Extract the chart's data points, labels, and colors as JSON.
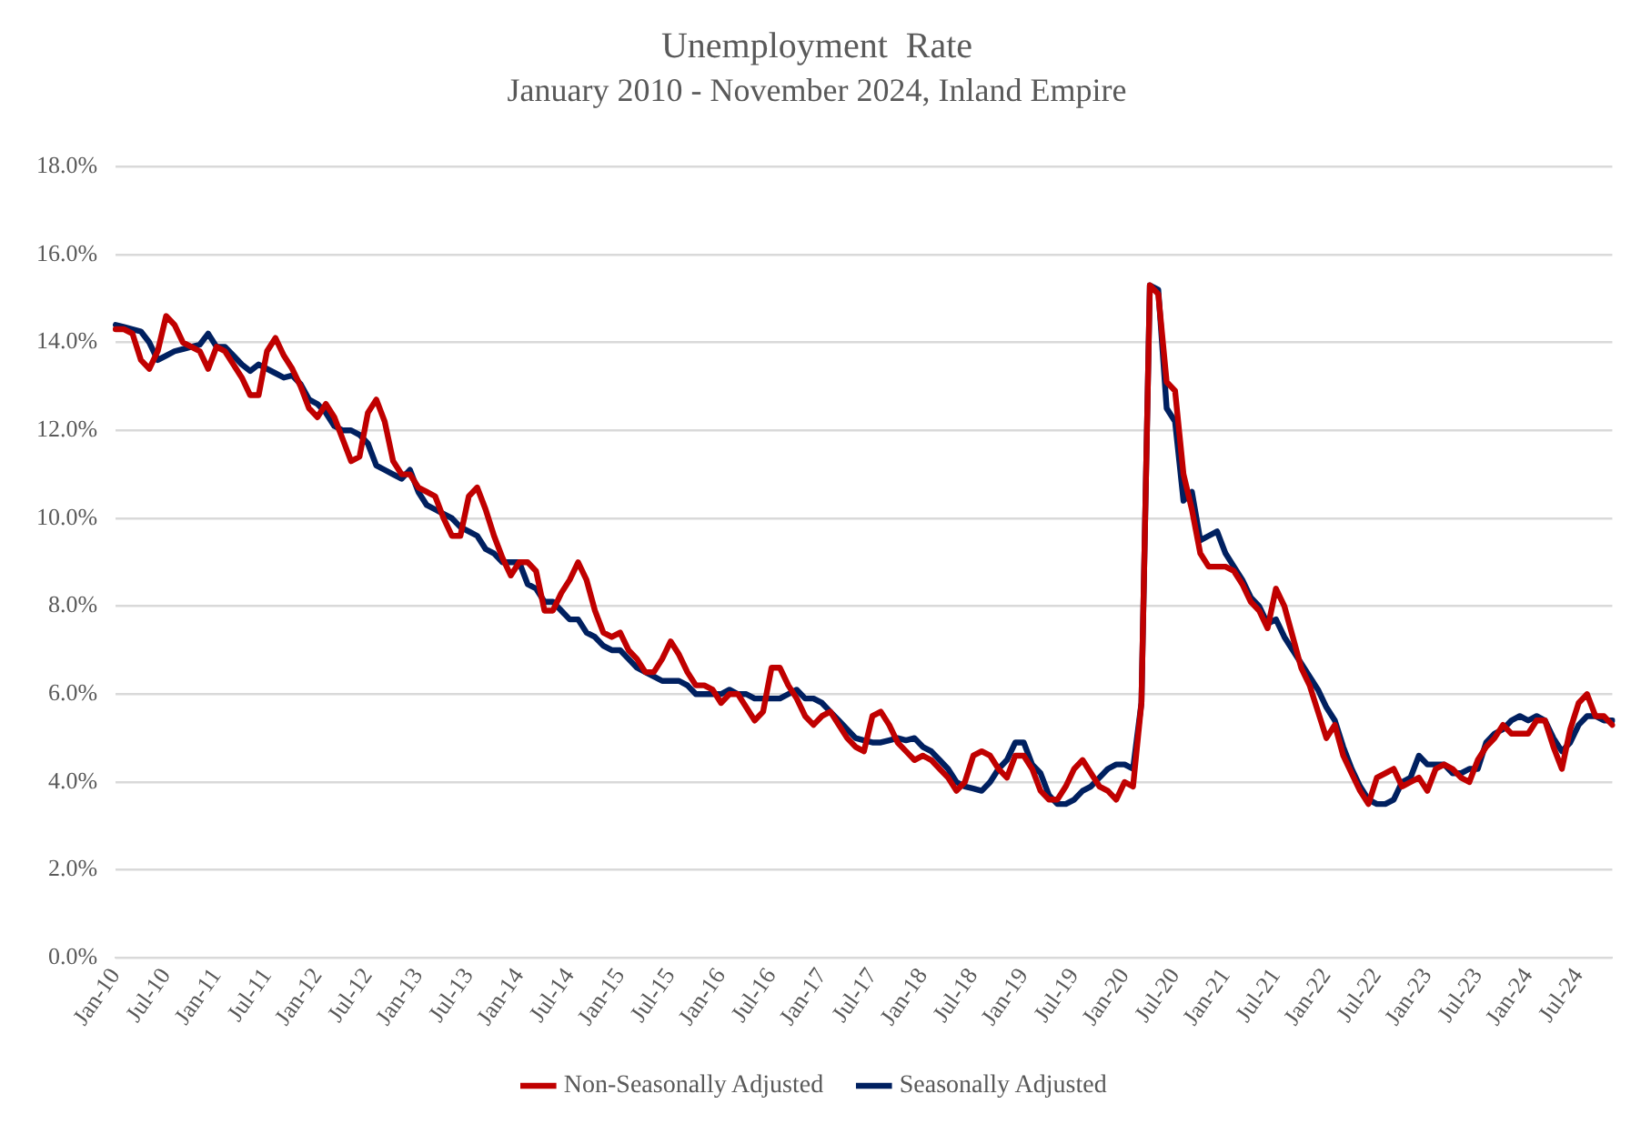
{
  "chart_data": {
    "type": "line",
    "title": "Unemployment  Rate",
    "subtitle": "January 2010 - November 2024, Inland Empire",
    "categories": [
      "Jan-10",
      null,
      null,
      null,
      null,
      null,
      "Jul-10",
      null,
      null,
      null,
      null,
      null,
      "Jan-11",
      null,
      null,
      null,
      null,
      null,
      "Jul-11",
      null,
      null,
      null,
      null,
      null,
      "Jan-12",
      null,
      null,
      null,
      null,
      null,
      "Jul-12",
      null,
      null,
      null,
      null,
      null,
      "Jan-13",
      null,
      null,
      null,
      null,
      null,
      "Jul-13",
      null,
      null,
      null,
      null,
      null,
      "Jan-14",
      null,
      null,
      null,
      null,
      null,
      "Jul-14",
      null,
      null,
      null,
      null,
      null,
      "Jan-15",
      null,
      null,
      null,
      null,
      null,
      "Jul-15",
      null,
      null,
      null,
      null,
      null,
      "Jan-16",
      null,
      null,
      null,
      null,
      null,
      "Jul-16",
      null,
      null,
      null,
      null,
      null,
      "Jan-17",
      null,
      null,
      null,
      null,
      null,
      "Jul-17",
      null,
      null,
      null,
      null,
      null,
      "Jan-18",
      null,
      null,
      null,
      null,
      null,
      "Jul-18",
      null,
      null,
      null,
      null,
      null,
      "Jan-19",
      null,
      null,
      null,
      null,
      null,
      "Jul-19",
      null,
      null,
      null,
      null,
      null,
      "Jan-20",
      null,
      null,
      null,
      null,
      null,
      "Jul-20",
      null,
      null,
      null,
      null,
      null,
      "Jan-21",
      null,
      null,
      null,
      null,
      null,
      "Jul-21",
      null,
      null,
      null,
      null,
      null,
      "Jan-22",
      null,
      null,
      null,
      null,
      null,
      "Jul-22",
      null,
      null,
      null,
      null,
      null,
      "Jan-23",
      null,
      null,
      null,
      null,
      null,
      "Jul-23",
      null,
      null,
      null,
      null,
      null,
      "Jan-24",
      null,
      null,
      null,
      null,
      null,
      "Jul-24",
      null,
      null,
      null,
      null
    ],
    "series": [
      {
        "name": "Non-Seasonally Adjusted",
        "color": "#c00000",
        "values": [
          14.3,
          14.3,
          14.2,
          13.6,
          13.4,
          13.8,
          14.6,
          14.4,
          14.0,
          13.9,
          13.8,
          13.4,
          13.9,
          13.8,
          13.5,
          13.2,
          12.8,
          12.8,
          13.8,
          14.1,
          13.7,
          13.4,
          13.0,
          12.5,
          12.3,
          12.6,
          12.3,
          11.8,
          11.3,
          11.4,
          12.4,
          12.7,
          12.2,
          11.3,
          11.0,
          11.0,
          10.7,
          10.6,
          10.5,
          10.0,
          9.6,
          9.6,
          10.5,
          10.7,
          10.2,
          9.6,
          9.1,
          8.7,
          9.0,
          9.0,
          8.8,
          7.9,
          7.9,
          8.3,
          8.6,
          9.0,
          8.6,
          7.9,
          7.4,
          7.3,
          7.4,
          7.0,
          6.8,
          6.5,
          6.5,
          6.8,
          7.2,
          6.9,
          6.5,
          6.2,
          6.2,
          6.1,
          5.8,
          6.0,
          6.0,
          5.7,
          5.4,
          5.6,
          6.6,
          6.6,
          6.2,
          5.9,
          5.5,
          5.3,
          5.5,
          5.6,
          5.3,
          5.0,
          4.8,
          4.7,
          5.5,
          5.6,
          5.3,
          4.9,
          4.7,
          4.5,
          4.6,
          4.5,
          4.3,
          4.1,
          3.8,
          4.0,
          4.6,
          4.7,
          4.6,
          4.3,
          4.1,
          4.6,
          4.6,
          4.3,
          3.8,
          3.6,
          3.6,
          3.9,
          4.3,
          4.5,
          4.2,
          3.9,
          3.8,
          3.6,
          4.0,
          3.9,
          5.8,
          15.3,
          15.1,
          13.1,
          12.9,
          11.0,
          10.2,
          9.2,
          8.9,
          8.9,
          8.9,
          8.8,
          8.5,
          8.1,
          7.9,
          7.5,
          8.4,
          8.0,
          7.3,
          6.6,
          6.2,
          5.6,
          5.0,
          5.3,
          4.6,
          4.2,
          3.8,
          3.5,
          4.1,
          4.2,
          4.3,
          3.9,
          4.0,
          4.1,
          3.8,
          4.3,
          4.4,
          4.3,
          4.1,
          4.0,
          4.5,
          4.8,
          5.0,
          5.3,
          5.1,
          5.1,
          5.1,
          5.4,
          5.4,
          4.8,
          4.3,
          5.2,
          5.8,
          6.0,
          5.5,
          5.5,
          5.3
        ]
      },
      {
        "name": "Seasonally Adjusted",
        "color": "#002060",
        "values": [
          14.4,
          14.35,
          14.3,
          14.25,
          14.0,
          13.6,
          13.7,
          13.8,
          13.85,
          13.9,
          13.95,
          14.2,
          13.9,
          13.9,
          13.7,
          13.5,
          13.35,
          13.5,
          13.4,
          13.3,
          13.2,
          13.25,
          13.05,
          12.7,
          12.6,
          12.4,
          12.1,
          12.0,
          12.0,
          11.9,
          11.7,
          11.2,
          11.1,
          11.0,
          10.9,
          11.1,
          10.6,
          10.3,
          10.2,
          10.1,
          10.0,
          9.8,
          9.7,
          9.6,
          9.3,
          9.2,
          9.0,
          9.0,
          9.0,
          8.5,
          8.4,
          8.1,
          8.1,
          7.9,
          7.7,
          7.7,
          7.4,
          7.3,
          7.1,
          7.0,
          7.0,
          6.8,
          6.6,
          6.5,
          6.4,
          6.3,
          6.3,
          6.3,
          6.2,
          6.0,
          6.0,
          6.0,
          6.0,
          6.1,
          6.0,
          6.0,
          5.9,
          5.9,
          5.9,
          5.9,
          6.0,
          6.1,
          5.9,
          5.9,
          5.8,
          5.6,
          5.4,
          5.2,
          5.0,
          4.95,
          4.9,
          4.9,
          4.95,
          5.0,
          4.95,
          5.0,
          4.8,
          4.7,
          4.5,
          4.3,
          4.0,
          3.9,
          3.85,
          3.8,
          4.0,
          4.3,
          4.5,
          4.9,
          4.9,
          4.4,
          4.2,
          3.7,
          3.5,
          3.5,
          3.6,
          3.8,
          3.9,
          4.1,
          4.3,
          4.4,
          4.4,
          4.3,
          5.8,
          15.3,
          15.2,
          12.5,
          12.2,
          10.4,
          10.6,
          9.5,
          9.6,
          9.7,
          9.2,
          8.9,
          8.6,
          8.2,
          8.0,
          7.6,
          7.7,
          7.3,
          7.0,
          6.7,
          6.4,
          6.1,
          5.7,
          5.4,
          4.8,
          4.3,
          3.9,
          3.6,
          3.5,
          3.5,
          3.6,
          4.0,
          4.1,
          4.6,
          4.4,
          4.4,
          4.4,
          4.2,
          4.2,
          4.3,
          4.3,
          4.9,
          5.1,
          5.2,
          5.4,
          5.5,
          5.4,
          5.5,
          5.4,
          5.0,
          4.7,
          4.9,
          5.3,
          5.5,
          5.5,
          5.4,
          5.4
        ]
      }
    ],
    "ylim": [
      0,
      18
    ],
    "yticks": [
      {
        "value": 0,
        "label": "0.0%"
      },
      {
        "value": 2,
        "label": "2.0%"
      },
      {
        "value": 4,
        "label": "4.0%"
      },
      {
        "value": 6,
        "label": "6.0%"
      },
      {
        "value": 8,
        "label": "8.0%"
      },
      {
        "value": 10,
        "label": "10.0%"
      },
      {
        "value": 12,
        "label": "12.0%"
      },
      {
        "value": 14,
        "label": "14.0%"
      },
      {
        "value": 16,
        "label": "16.0%"
      },
      {
        "value": 18,
        "label": "18.0%"
      }
    ],
    "grid": "y",
    "legend": "bottom",
    "marker": "none",
    "line_style": "solid"
  }
}
